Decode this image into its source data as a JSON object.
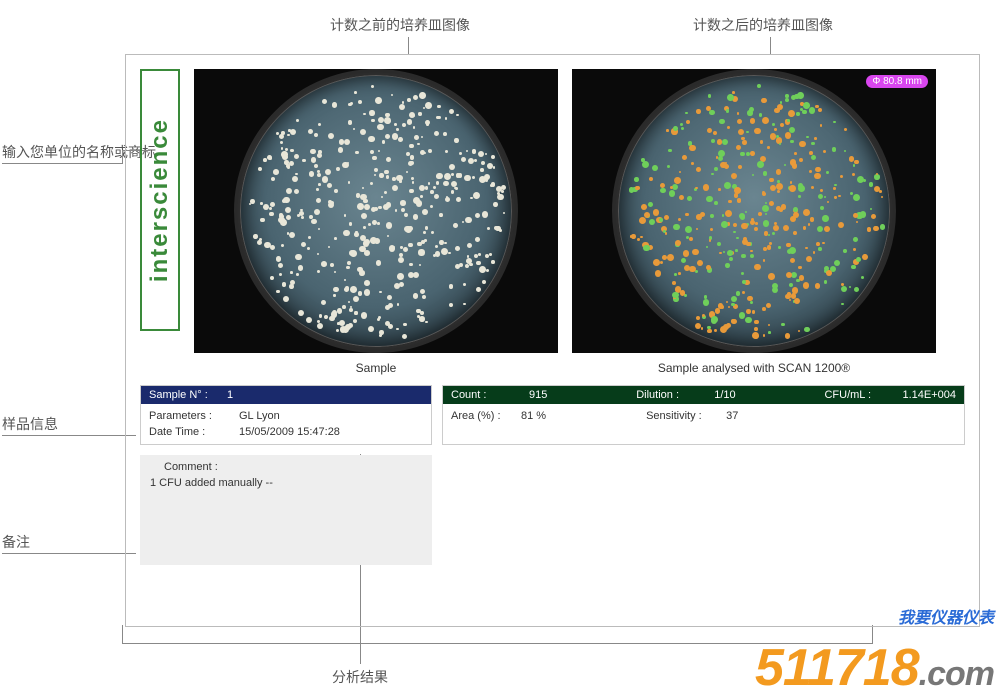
{
  "callouts": {
    "before_image": "计数之前的培养皿图像",
    "after_image": "计数之后的培养皿图像",
    "enter_org": "输入您单位的名称或商标",
    "sample_info": "样品信息",
    "comment": "备注",
    "analysis_result": "分析结果"
  },
  "logo": {
    "text": "interscience"
  },
  "dish_before": {
    "caption": "Sample",
    "bg_black": "#0a0a0a",
    "petri_gradient_inner": "#6a8590",
    "petri_gradient_mid": "#4a6470",
    "colony_color": "#e8e6d8",
    "colony_count": 420
  },
  "dish_after": {
    "caption": "Sample analysed with SCAN 1200®",
    "diameter_label": "Φ 80.8 mm",
    "diameter_bg": "#d946ef",
    "colony_primary": "#e89a3a",
    "colony_secondary": "#6fcf5a",
    "colony_count": 420
  },
  "sample_header": {
    "label": "Sample N° :",
    "value": "1",
    "bg": "#1a2a6c"
  },
  "sample_body": {
    "parameters_label": "Parameters :",
    "parameters_value": "GL Lyon",
    "datetime_label": "Date Time :",
    "datetime_value": "15/05/2009 15:47:28"
  },
  "analysis_header": {
    "bg": "#063c1a",
    "count_label": "Count :",
    "count_value": "915",
    "dilution_label": "Dilution :",
    "dilution_value": "1/10",
    "cfu_label": "CFU/mL :",
    "cfu_value": "1.14E+004"
  },
  "analysis_body": {
    "area_label": "Area (%) :",
    "area_value": "81 %",
    "sensitivity_label": "Sensitivity :",
    "sensitivity_value": "37"
  },
  "comment_box": {
    "title": "Comment :",
    "text": "1 CFU added manually  --"
  },
  "watermark": {
    "cn": "我要仪器仪表",
    "num": "511718",
    "com": ".com"
  },
  "colors": {
    "frame_border": "#bbbbbb",
    "logo_green": "#3a8a3a",
    "comment_bg": "#eeeeee",
    "wm_orange": "#f39a1f",
    "wm_blue": "#2a6bd6"
  }
}
